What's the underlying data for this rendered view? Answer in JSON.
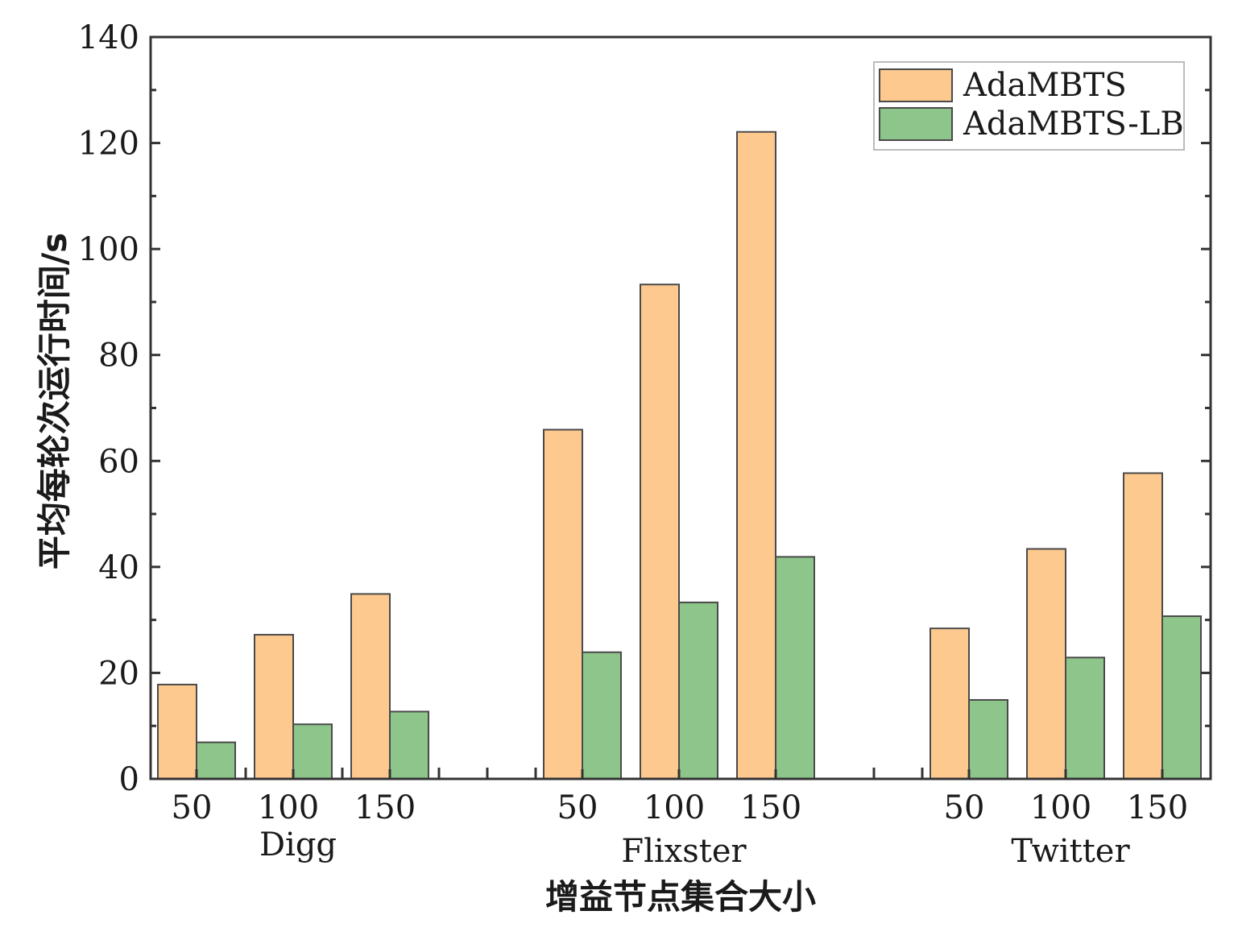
{
  "chart_data": {
    "type": "bar",
    "xlabel": "增益节点集合大小",
    "ylabel": "平均每轮次运行时间/s",
    "ylim": [
      0,
      140
    ],
    "yticks": [
      0,
      20,
      40,
      60,
      80,
      100,
      120,
      140
    ],
    "legend_position": "top-right",
    "grid": false,
    "groups": [
      {
        "name": "Digg",
        "categories": [
          "50",
          "100",
          "150"
        ]
      },
      {
        "name": "Flixster",
        "categories": [
          "50",
          "100",
          "150"
        ]
      },
      {
        "name": "Twitter",
        "categories": [
          "50",
          "100",
          "150"
        ]
      }
    ],
    "series": [
      {
        "name": "AdaMBTS",
        "color": "#FDC98F",
        "values": [
          17.8,
          27.2,
          34.9,
          65.9,
          93.3,
          122.1,
          28.4,
          43.4,
          57.7
        ]
      },
      {
        "name": "AdaMBTS-LB",
        "color": "#8DC58B",
        "values": [
          6.9,
          10.3,
          12.7,
          23.9,
          33.3,
          41.9,
          14.9,
          22.9,
          30.7
        ]
      }
    ]
  }
}
